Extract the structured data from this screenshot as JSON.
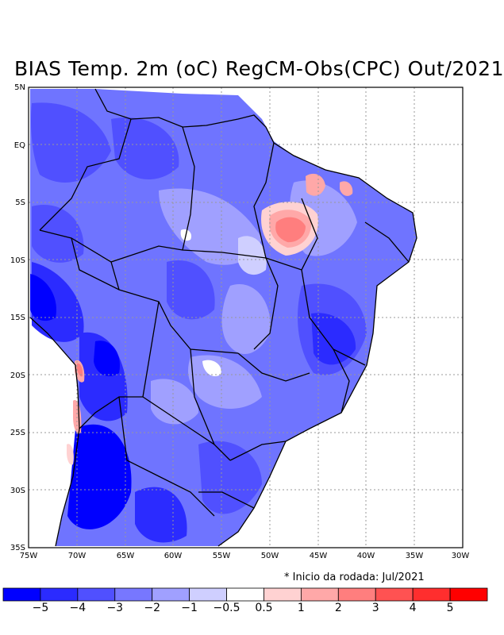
{
  "title": "BIAS Temp. 2m (oC) RegCM-Obs(CPC) Out/2021",
  "note": "* Inicio da rodada: Jul/2021",
  "lat_labels": [
    "5N",
    "EQ",
    "5S",
    "10S",
    "15S",
    "20S",
    "25S",
    "30S",
    "35S"
  ],
  "lon_labels": [
    "75W",
    "70W",
    "65W",
    "60W",
    "55W",
    "50W",
    "45W",
    "40W",
    "35W",
    "30W"
  ],
  "colorbar": {
    "colors": [
      "#0000ff",
      "#2b2bff",
      "#5050ff",
      "#7777ff",
      "#a0a0ff",
      "#cfcfff",
      "#ffffff",
      "#ffd2d2",
      "#ffa8a8",
      "#ff7e7e",
      "#ff5252",
      "#ff2e2e",
      "#ff0000"
    ],
    "labels": [
      "−5",
      "−4",
      "−3",
      "−2",
      "−1",
      "−0.5",
      "0.5",
      "1",
      "2",
      "3",
      "4",
      "5"
    ]
  }
}
